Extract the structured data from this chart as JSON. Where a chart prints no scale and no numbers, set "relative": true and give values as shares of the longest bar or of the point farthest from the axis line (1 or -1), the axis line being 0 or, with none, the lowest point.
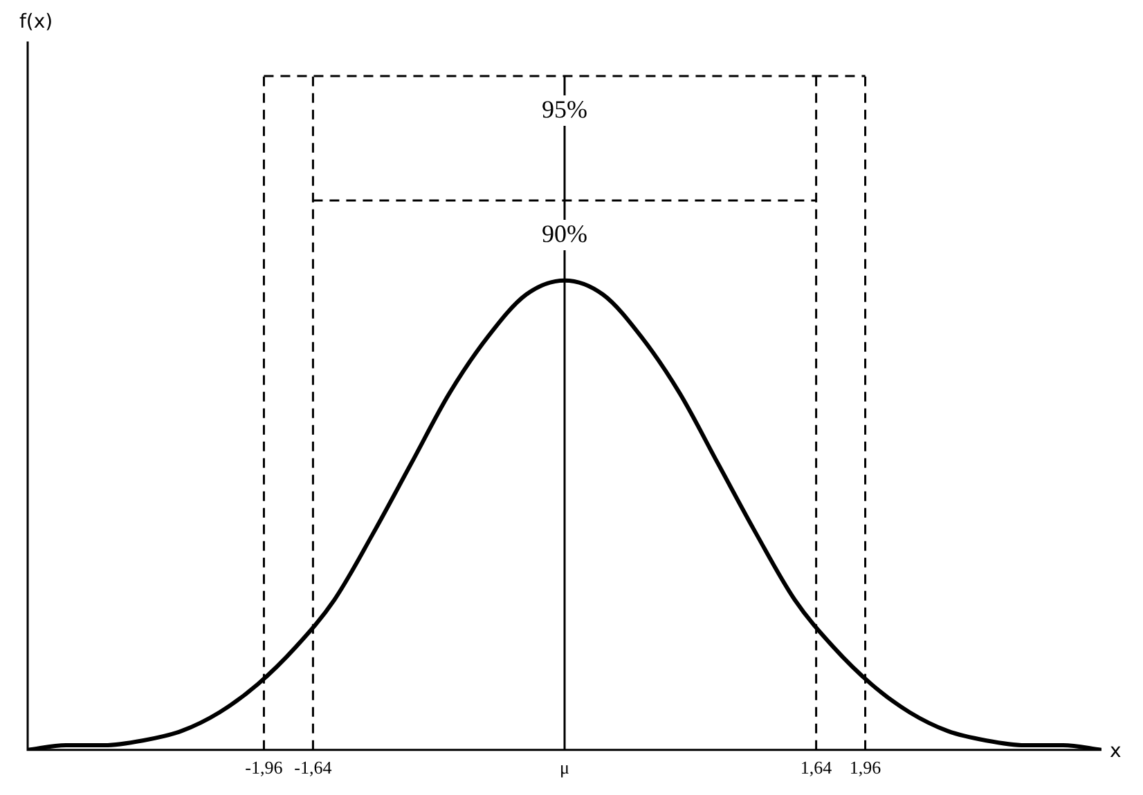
{
  "chart_data": {
    "type": "line",
    "relative": true,
    "xlabel": "x",
    "x": [
      -3.5,
      -3.25,
      -3,
      -2.75,
      -2.5,
      -2.25,
      -2,
      -1.75,
      -1.5,
      -1.25,
      -1,
      -0.75,
      -0.5,
      -0.25,
      0,
      0.25,
      0.5,
      0.75,
      1,
      1.25,
      1.5,
      1.75,
      2,
      2.25,
      2.5,
      2.75,
      3,
      3.25,
      3.5
    ],
    "series": [
      {
        "color": "#000000",
        "values": [
          0.0,
          0.01,
          0.01,
          0.02,
          0.04,
          0.08,
          0.14,
          0.22,
          0.32,
          0.46,
          0.61,
          0.76,
          0.88,
          0.97,
          1,
          0.97,
          0.88,
          0.76,
          0.61,
          0.46,
          0.32,
          0.22,
          0.14,
          0.08,
          0.04,
          0.02,
          0.01,
          0.01,
          0.0
        ]
      }
    ],
    "xlim": [
      -3.5,
      3.5
    ],
    "xticks": [
      {
        "value": -1.96,
        "label": "-1,96"
      },
      {
        "value": -1.64,
        "label": "-1,64"
      },
      {
        "value": 0,
        "label": "μ"
      },
      {
        "value": 1.64,
        "label": "1,64"
      },
      {
        "value": 1.96,
        "label": "1,96"
      }
    ],
    "ref_lines": [
      {
        "axis": "x",
        "value": -1.96,
        "line_style": "dashed"
      },
      {
        "axis": "x",
        "value": 1.96,
        "line_style": "dashed"
      },
      {
        "axis": "x",
        "value": -1.64,
        "line_style": "dashed"
      },
      {
        "axis": "x",
        "value": 1.64,
        "line_style": "dashed"
      },
      {
        "axis": "x",
        "value": 0,
        "line_style": "solid"
      }
    ],
    "annotations": [
      "95%",
      "90%",
      "f(x)"
    ],
    "grid": false,
    "legend": false,
    "marker": "none",
    "line_style": "solid"
  }
}
